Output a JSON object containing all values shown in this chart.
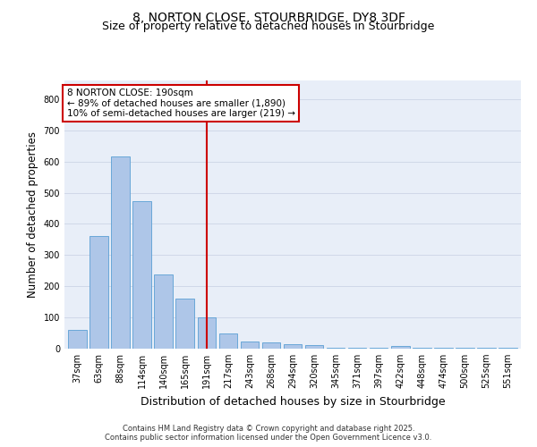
{
  "title1": "8, NORTON CLOSE, STOURBRIDGE, DY8 3DF",
  "title2": "Size of property relative to detached houses in Stourbridge",
  "xlabel": "Distribution of detached houses by size in Stourbridge",
  "ylabel": "Number of detached properties",
  "categories": [
    "37sqm",
    "63sqm",
    "88sqm",
    "114sqm",
    "140sqm",
    "165sqm",
    "191sqm",
    "217sqm",
    "243sqm",
    "268sqm",
    "294sqm",
    "320sqm",
    "345sqm",
    "371sqm",
    "397sqm",
    "422sqm",
    "448sqm",
    "474sqm",
    "500sqm",
    "525sqm",
    "551sqm"
  ],
  "values": [
    60,
    362,
    617,
    472,
    237,
    160,
    100,
    48,
    22,
    20,
    15,
    12,
    2,
    2,
    2,
    8,
    2,
    2,
    2,
    2,
    4
  ],
  "bar_color": "#aec6e8",
  "bar_edge_color": "#5a9fd4",
  "highlight_index": 6,
  "annotation_text": "8 NORTON CLOSE: 190sqm\n← 89% of detached houses are smaller (1,890)\n10% of semi-detached houses are larger (219) →",
  "vline_color": "#cc0000",
  "box_edge_color": "#cc0000",
  "ylim": [
    0,
    860
  ],
  "yticks": [
    0,
    100,
    200,
    300,
    400,
    500,
    600,
    700,
    800
  ],
  "grid_color": "#d0d8e8",
  "plot_bg_color": "#e8eef8",
  "footer_line1": "Contains HM Land Registry data © Crown copyright and database right 2025.",
  "footer_line2": "Contains public sector information licensed under the Open Government Licence v3.0.",
  "title_fontsize": 10,
  "subtitle_fontsize": 9,
  "tick_fontsize": 7,
  "ylabel_fontsize": 8.5,
  "xlabel_fontsize": 9,
  "annotation_fontsize": 7.5,
  "footer_fontsize": 6
}
